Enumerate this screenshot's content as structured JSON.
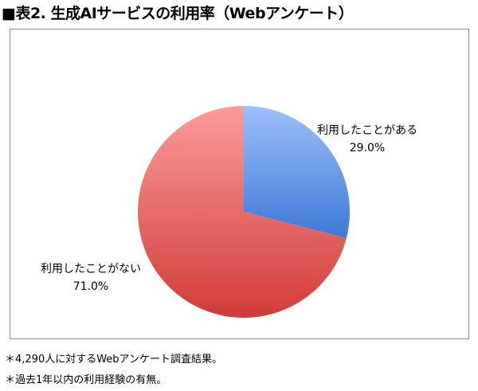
{
  "title": "■表2. 生成AIサービスの利用率（Webアンケート）",
  "chart_data": {
    "type": "pie",
    "categories": [
      "利用したことがある",
      "利用したことがない"
    ],
    "values": [
      29.0,
      71.0
    ],
    "value_labels": [
      "29.0%",
      "71.0%"
    ],
    "colors": [
      "#6f9be6",
      "#e06461"
    ],
    "start": "12 o'clock, clockwise"
  },
  "notes": [
    "＊4,290人に対するWebアンケート調査結果。",
    "＊過去1年以内の利用経験の有無。"
  ]
}
